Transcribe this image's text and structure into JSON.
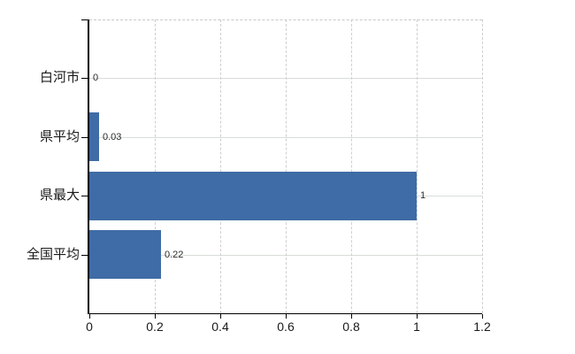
{
  "chart": {
    "background_color": "#ffffff",
    "bar_color": "#3f6ca6",
    "grid_color": "#d7ddd7",
    "axis_color": "#000000",
    "label_color": "#1a1a1a",
    "value_label_color": "#2a2a2a"
  },
  "chart_data": {
    "type": "bar",
    "orientation": "horizontal",
    "categories": [
      "白河市",
      "県平均",
      "県最大",
      "全国平均"
    ],
    "values": [
      0,
      0.03,
      1,
      0.22
    ],
    "value_labels": [
      "0",
      "0.03",
      "1",
      "0.22"
    ],
    "xlim": [
      0,
      1.2
    ],
    "xticks": [
      0,
      0.2,
      0.4,
      0.6,
      0.8,
      1,
      1.2
    ],
    "xtick_labels": [
      "0",
      "0.2",
      "0.4",
      "0.6",
      "0.8",
      "1",
      "1.2"
    ],
    "grid": true,
    "legend": false,
    "grid_vertical_style": "dashed",
    "grid_horizontal_style": "solid"
  }
}
